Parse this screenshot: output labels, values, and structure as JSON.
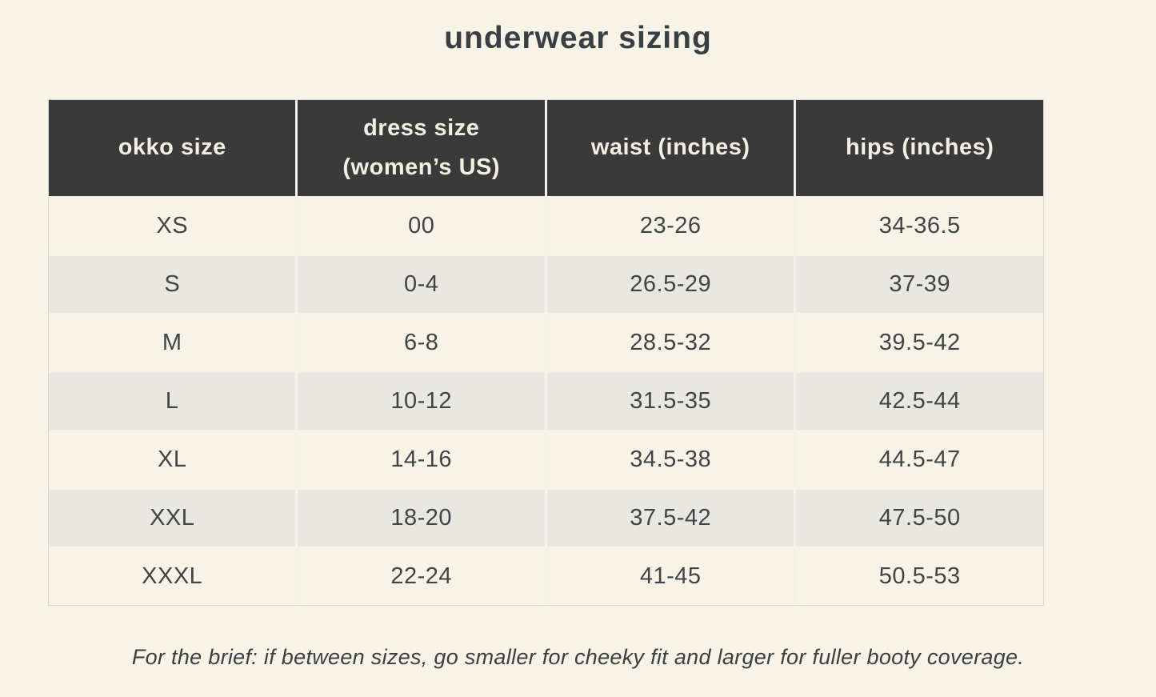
{
  "chart_data": {
    "type": "table",
    "title": "underwear sizing",
    "columns": [
      "okko size",
      "dress size\n(women’s US)",
      "waist (inches)",
      "hips (inches)"
    ],
    "rows": [
      [
        "XS",
        "00",
        "23-26",
        "34-36.5"
      ],
      [
        "S",
        "0-4",
        "26.5-29",
        "37-39"
      ],
      [
        "M",
        "6-8",
        "28.5-32",
        "39.5-42"
      ],
      [
        "L",
        "10-12",
        "31.5-35",
        "42.5-44"
      ],
      [
        "XL",
        "14-16",
        "34.5-38",
        "44.5-47"
      ],
      [
        "XXL",
        "18-20",
        "37.5-42",
        "47.5-50"
      ],
      [
        "XXXL",
        "22-24",
        "41-45",
        "50.5-53"
      ]
    ],
    "note": "For the brief: if between sizes, go smaller for cheeky fit and larger for fuller booty coverage."
  },
  "colors": {
    "page_background": "#f7f4e7",
    "header_background": "#3a3a3a",
    "header_text": "#f3efe2",
    "stripe_row": "#e8e7e1",
    "body_text": "#414447",
    "cell_divider": "#f4f1e5",
    "table_outline": "#d9d7cd"
  }
}
